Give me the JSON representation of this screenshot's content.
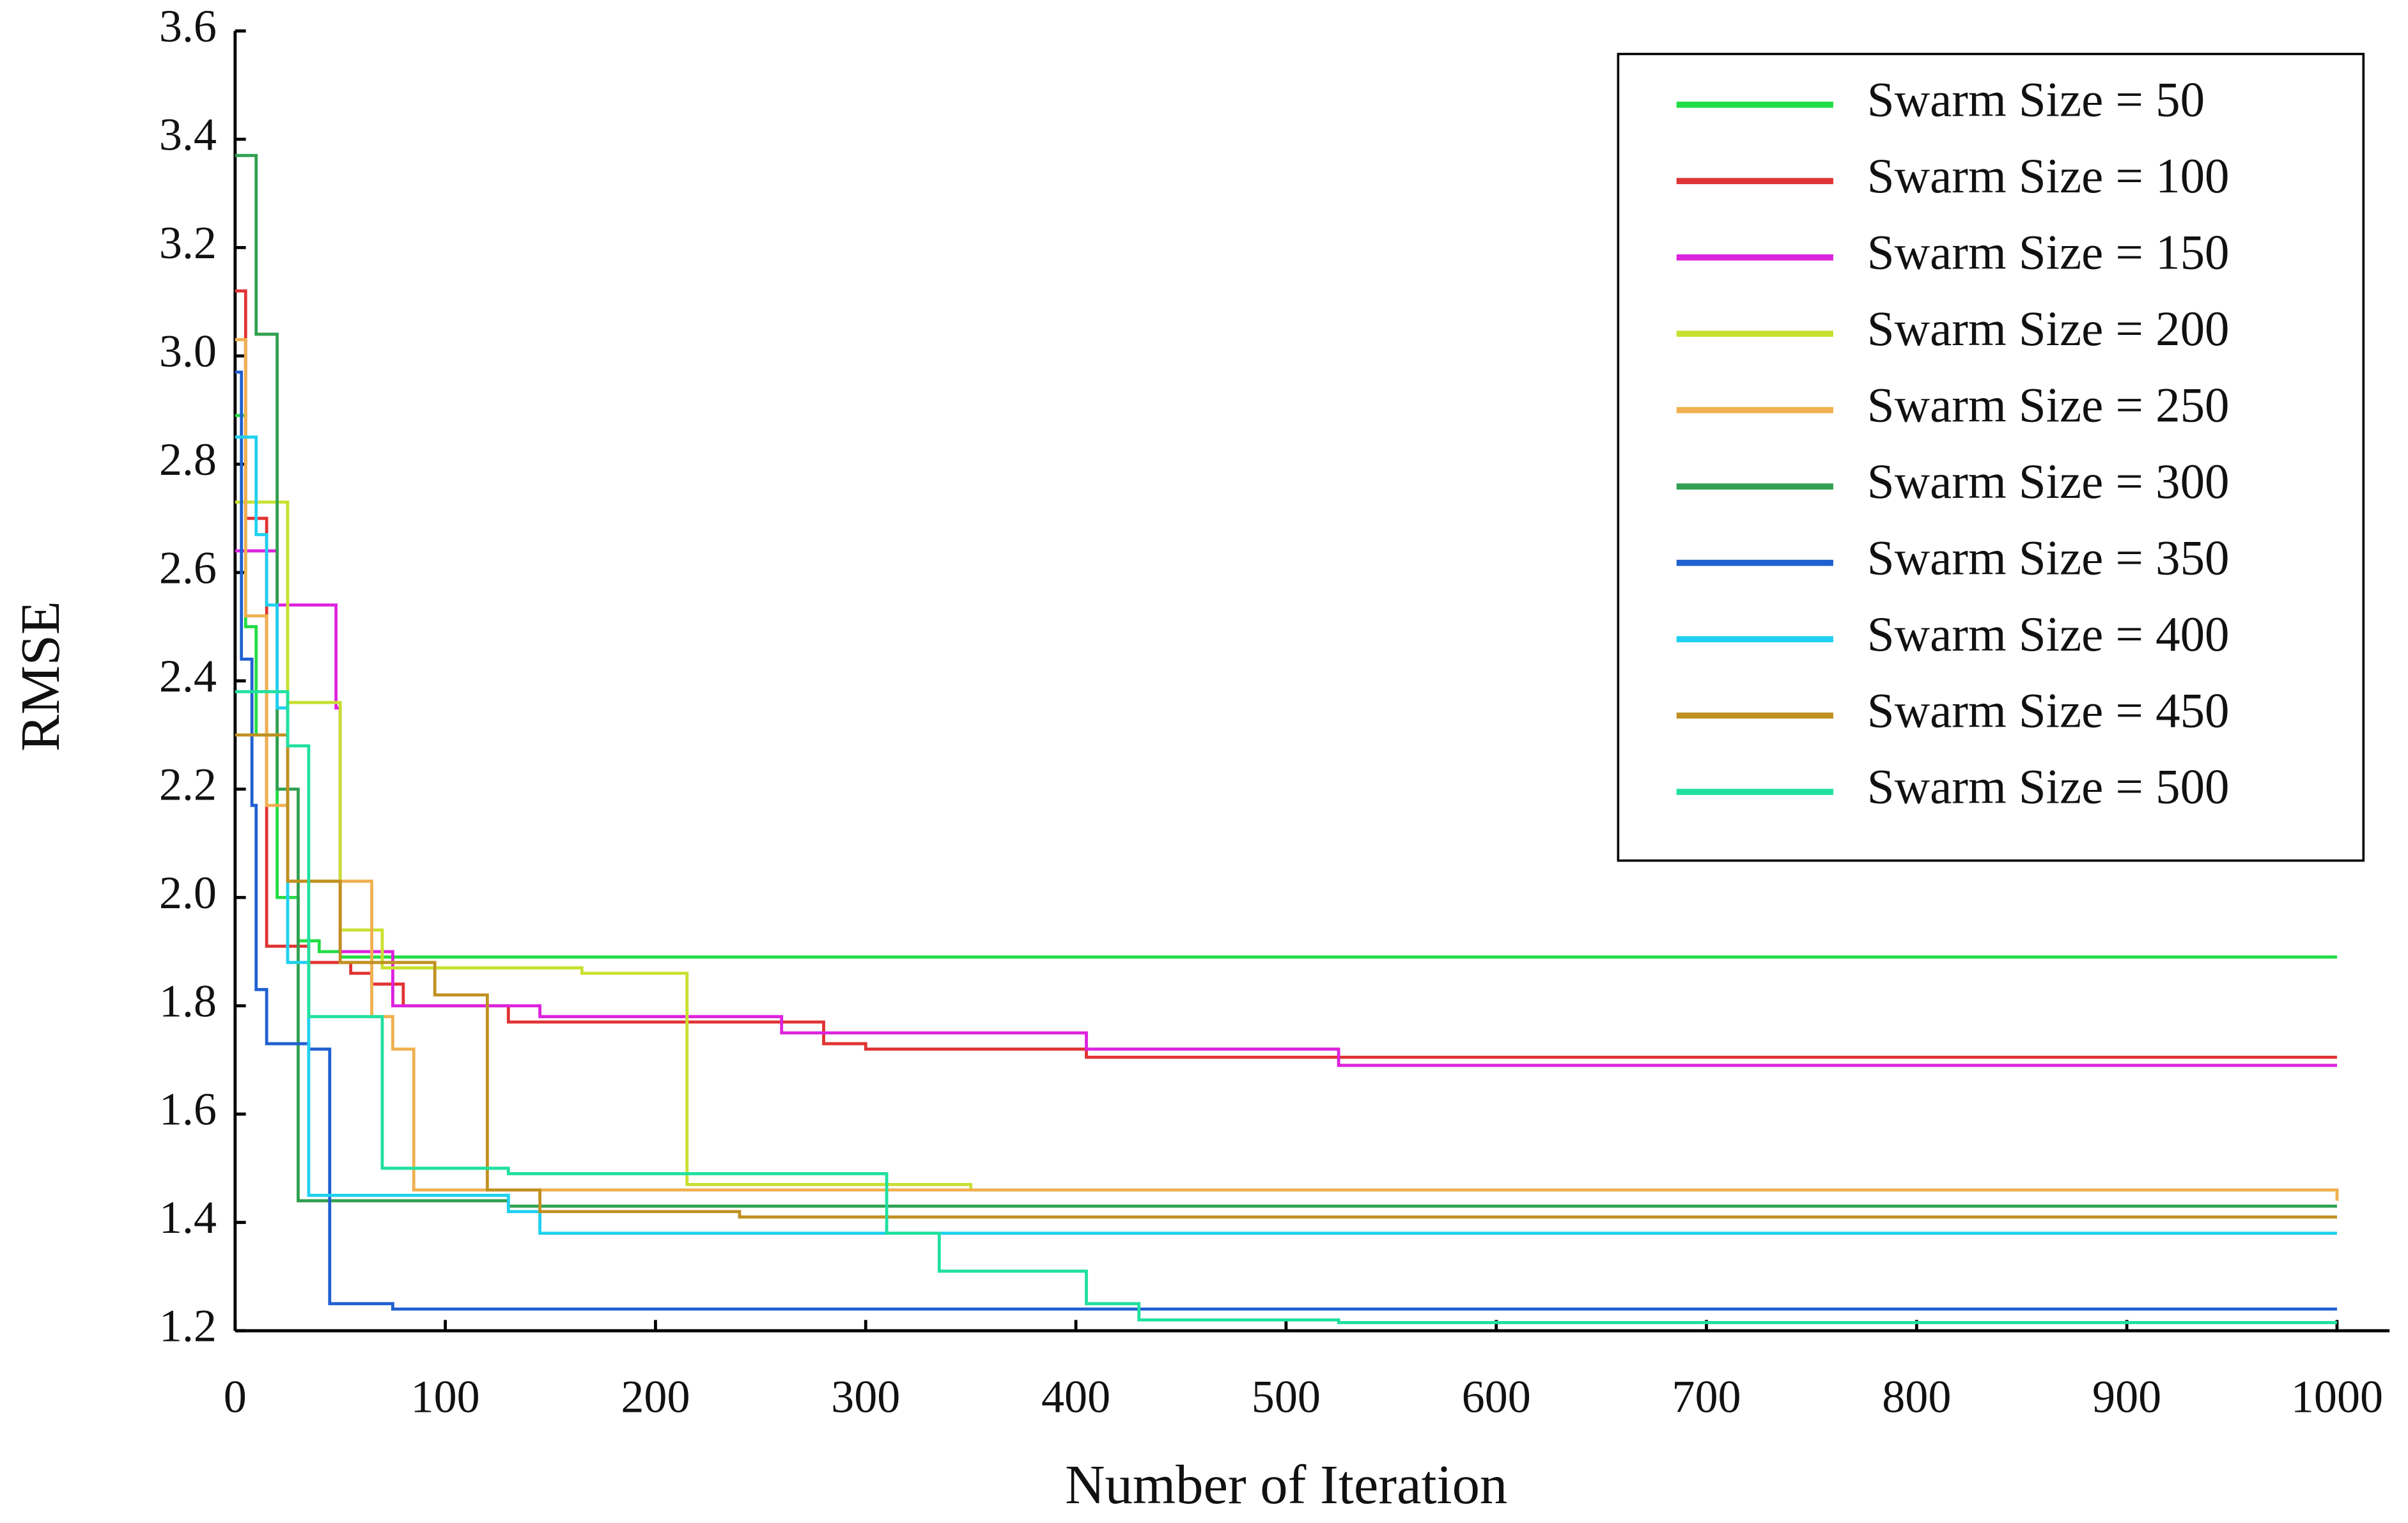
{
  "chart_data": {
    "type": "line",
    "step": "post",
    "x_label": "Number of Iteration",
    "y_label": "RMSE",
    "xlim": [
      0,
      1025
    ],
    "xticks": [
      0,
      100,
      200,
      300,
      400,
      500,
      600,
      700,
      800,
      900,
      1000
    ],
    "ylim": [
      1.2,
      3.6
    ],
    "yticks": [
      1.2,
      1.4,
      1.6,
      1.8,
      {
        "value": 2,
        "label": "2.0"
      },
      2.2,
      2.4,
      2.6,
      2.8,
      {
        "value": 3,
        "label": "3.0"
      },
      3.2,
      3.4,
      3.6
    ],
    "grid": false,
    "legend": "upper right",
    "series": [
      {
        "name": "Swarm Size = 50",
        "color": "#22dd44",
        "x": [
          0,
          5,
          10,
          20,
          30,
          40,
          50,
          1000
        ],
        "values": [
          2.89,
          2.5,
          2.3,
          2.0,
          1.92,
          1.9,
          1.89,
          1.89
        ]
      },
      {
        "name": "Swarm Size = 100",
        "color": "#e03333",
        "x": [
          0,
          5,
          15,
          35,
          55,
          65,
          80,
          130,
          280,
          300,
          405,
          1000
        ],
        "values": [
          3.12,
          2.7,
          1.91,
          1.88,
          1.86,
          1.84,
          1.8,
          1.77,
          1.73,
          1.72,
          1.705,
          1.705
        ]
      },
      {
        "name": "Swarm Size = 150",
        "color": "#dd22dd",
        "x": [
          0,
          20,
          48,
          50,
          75,
          145,
          260,
          405,
          525,
          1000
        ],
        "values": [
          2.64,
          2.54,
          2.35,
          1.9,
          1.8,
          1.78,
          1.75,
          1.72,
          1.69,
          1.69
        ]
      },
      {
        "name": "Swarm Size = 200",
        "color": "#c8e030",
        "x": [
          0,
          25,
          50,
          70,
          165,
          215,
          350,
          1000
        ],
        "values": [
          2.73,
          2.36,
          1.94,
          1.87,
          1.86,
          1.47,
          1.46,
          1.46
        ]
      },
      {
        "name": "Swarm Size = 250",
        "color": "#f0b050",
        "x": [
          0,
          5,
          15,
          25,
          65,
          75,
          85,
          1000
        ],
        "values": [
          3.03,
          2.52,
          2.17,
          2.03,
          1.78,
          1.72,
          1.46,
          1.44
        ]
      },
      {
        "name": "Swarm Size = 300",
        "color": "#30a050",
        "x": [
          0,
          10,
          20,
          30,
          100,
          130,
          1000
        ],
        "values": [
          3.37,
          3.04,
          2.2,
          1.44,
          1.44,
          1.43,
          1.43
        ]
      },
      {
        "name": "Swarm Size = 350",
        "color": "#2060d0",
        "x": [
          0,
          3,
          8,
          10,
          15,
          35,
          45,
          75,
          1000
        ],
        "values": [
          2.97,
          2.44,
          2.17,
          1.83,
          1.73,
          1.72,
          1.25,
          1.24,
          1.24
        ]
      },
      {
        "name": "Swarm Size = 400",
        "color": "#20d0f0",
        "x": [
          0,
          10,
          15,
          20,
          25,
          35,
          130,
          145,
          210,
          1000
        ],
        "values": [
          2.85,
          2.67,
          2.54,
          2.35,
          1.88,
          1.45,
          1.42,
          1.38,
          1.38,
          1.38
        ]
      },
      {
        "name": "Swarm Size = 450",
        "color": "#c09020",
        "x": [
          0,
          25,
          50,
          95,
          120,
          145,
          240,
          1000
        ],
        "values": [
          2.3,
          2.03,
          1.88,
          1.82,
          1.46,
          1.42,
          1.41,
          1.41
        ]
      },
      {
        "name": "Swarm Size = 500",
        "color": "#20e0a0",
        "x": [
          0,
          25,
          35,
          70,
          130,
          310,
          335,
          405,
          430,
          525,
          1000
        ],
        "values": [
          2.38,
          2.28,
          1.78,
          1.5,
          1.49,
          1.38,
          1.31,
          1.25,
          1.22,
          1.215,
          1.215
        ]
      }
    ]
  }
}
